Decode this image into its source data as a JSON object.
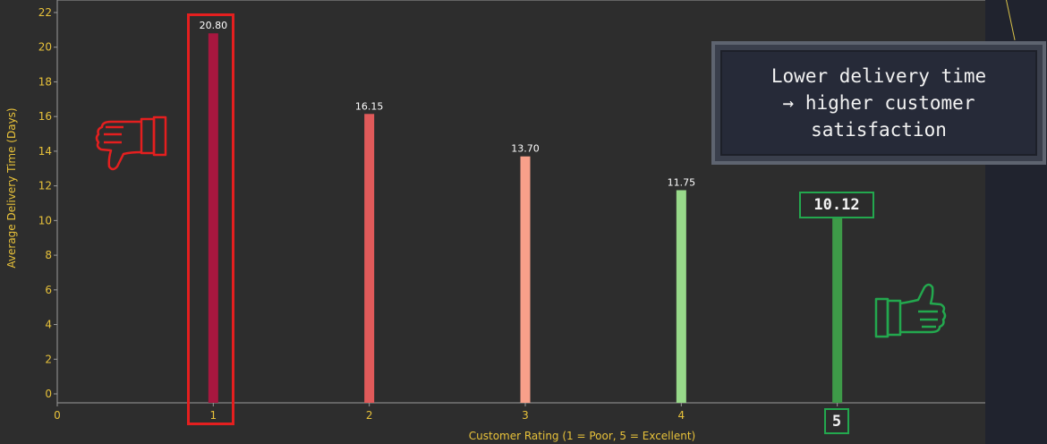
{
  "chart_data": {
    "type": "bar",
    "categories": [
      "1",
      "2",
      "3",
      "4",
      "5"
    ],
    "x": [
      1,
      2,
      3,
      4,
      5
    ],
    "values": [
      20.8,
      16.15,
      13.7,
      11.75,
      10.12
    ],
    "data_labels": [
      "20.80",
      "16.15",
      "13.70",
      "11.75",
      "10.12"
    ],
    "bar_colors": [
      "#a8173f",
      "#e05a5a",
      "#f8a08a",
      "#98d98a",
      "#3e9a48"
    ],
    "title": "",
    "xlabel": "Customer Rating (1 = Poor, 5 = Excellent)",
    "ylabel": "Average Delivery Time (Days)",
    "xlim": [
      0,
      6
    ],
    "ylim": [
      0,
      22
    ],
    "xticks": [
      "0",
      "1",
      "2",
      "3",
      "4",
      "5"
    ],
    "yticks": [
      "0",
      "2",
      "4",
      "6",
      "8",
      "10",
      "12",
      "14",
      "16",
      "18",
      "20",
      "22"
    ],
    "grid": false
  },
  "annotation": {
    "lines": [
      "Lower delivery time",
      "→ higher customer",
      "satisfaction"
    ]
  },
  "highlight": {
    "value_label": "10.12",
    "tick_label": "5"
  },
  "colors": {
    "background": "#2d2d2d",
    "axis_text": "#e8c23a",
    "negative_accent": "#e41f1f",
    "positive_accent": "#23a84e"
  },
  "icons": [
    "thumbs-down-icon",
    "thumbs-up-icon"
  ]
}
